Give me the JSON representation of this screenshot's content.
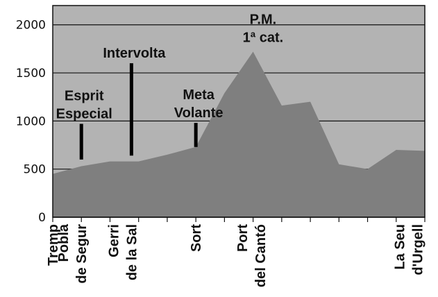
{
  "chart_data": {
    "type": "area",
    "title": "",
    "xlabel": "",
    "ylabel": "",
    "ylim": [
      0,
      2200
    ],
    "yticks": [
      0,
      500,
      1000,
      1500,
      2000
    ],
    "grid": true,
    "colors": {
      "plot_bg": "#b3b3b3",
      "area": "#7f7f7f",
      "grid": "#111111",
      "marker": "#000000"
    },
    "x": [
      0,
      1,
      2,
      3,
      4,
      5,
      6,
      7,
      8,
      9,
      10,
      11,
      12,
      13
    ],
    "values": [
      450,
      530,
      580,
      580,
      650,
      730,
      1290,
      1720,
      1160,
      1200,
      550,
      500,
      700,
      690
    ],
    "x_tick_labels": [
      {
        "x": 0,
        "lines": [
          "Tremp"
        ]
      },
      {
        "x": 1,
        "lines": [
          "Pobla",
          "de Segur"
        ]
      },
      {
        "x": 2.75,
        "lines": [
          "Gerri",
          "de la Sal"
        ]
      },
      {
        "x": 5,
        "lines": [
          "Sort"
        ]
      },
      {
        "x": 7.25,
        "lines": [
          "Port",
          "del Cantó"
        ]
      },
      {
        "x": 12.75,
        "lines": [
          "La Seu",
          "d'Urgell"
        ]
      }
    ],
    "annotations": [
      {
        "id": "esprit",
        "lines": [
          "Esprit",
          "Especial"
        ],
        "x": 1,
        "bar_from": 600,
        "bar_to": 970
      },
      {
        "id": "intervolta",
        "lines": [
          "Intervolta"
        ],
        "x": 2.75,
        "bar_from": 640,
        "bar_to": 1600
      },
      {
        "id": "meta",
        "lines": [
          "Meta",
          "Volante"
        ],
        "x": 5,
        "bar_from": 730,
        "bar_to": 980
      },
      {
        "id": "pm",
        "lines": [
          "P.M.",
          "1ª cat."
        ],
        "x": 7.25
      }
    ]
  }
}
